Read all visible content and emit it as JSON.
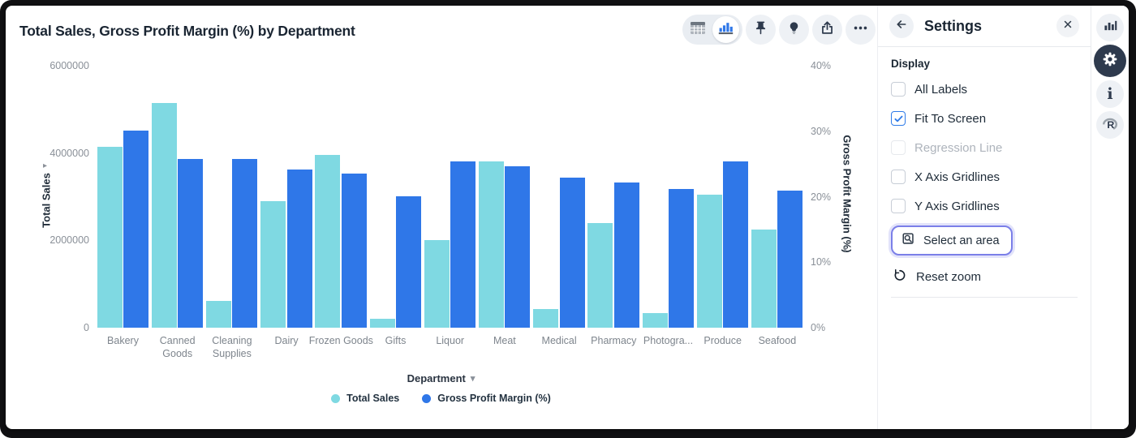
{
  "colors": {
    "total_sales": "#7FD9E2",
    "gross_profit_margin": "#2F77E8",
    "focus_ring": "#7B7FE8",
    "checkbox_checked": "#2F7BE8",
    "icon_dark": "#2E3A4D"
  },
  "header": {
    "title": "Total Sales, Gross Profit Margin (%) by Department"
  },
  "toolbar": {
    "items": [
      {
        "icon": "table-view-icon",
        "active": false
      },
      {
        "icon": "chart-view-icon",
        "active": true
      },
      {
        "icon": "pin-icon"
      },
      {
        "icon": "lightbulb-icon"
      },
      {
        "icon": "export-icon"
      },
      {
        "icon": "more-ellipsis-icon"
      }
    ]
  },
  "chart_data": {
    "type": "bar",
    "title": "Total Sales, Gross Profit Margin (%) by Department",
    "categories": [
      "Bakery",
      "Canned Goods",
      "Cleaning Supplies",
      "Dairy",
      "Frozen Goods",
      "Gifts",
      "Liquor",
      "Meat",
      "Medical",
      "Pharmacy",
      "Photogra...",
      "Produce",
      "Seafood"
    ],
    "series": [
      {
        "name": "Total Sales",
        "axis": "left",
        "color": "#7FD9E2",
        "values": [
          4150000,
          5150000,
          620000,
          2900000,
          3950000,
          200000,
          2000000,
          3800000,
          430000,
          2400000,
          330000,
          3050000,
          2250000
        ]
      },
      {
        "name": "Gross Profit Margin (%)",
        "axis": "right",
        "color": "#2F77E8",
        "values": [
          30.1,
          25.8,
          25.7,
          24.2,
          23.5,
          20.1,
          25.4,
          24.7,
          22.9,
          22.2,
          21.2,
          25.4,
          20.9
        ]
      }
    ],
    "left_axis": {
      "title": "Total Sales",
      "min": 0,
      "max": 6000000,
      "ticks": [
        0,
        2000000,
        4000000,
        6000000
      ]
    },
    "right_axis": {
      "title": "Gross Profit Margin (%)",
      "min": 0,
      "max": 40,
      "ticks": [
        0,
        10,
        20,
        30,
        40
      ],
      "suffix": "%"
    },
    "x_axis": {
      "title": "Department"
    },
    "legend_position": "bottom",
    "gridlines": false
  },
  "settings": {
    "title": "Settings",
    "section_label": "Display",
    "options": [
      {
        "label": "All Labels",
        "checked": false,
        "disabled": false
      },
      {
        "label": "Fit To Screen",
        "checked": true,
        "disabled": false
      },
      {
        "label": "Regression Line",
        "checked": false,
        "disabled": true
      },
      {
        "label": "X Axis Gridlines",
        "checked": false,
        "disabled": false
      },
      {
        "label": "Y Axis Gridlines",
        "checked": false,
        "disabled": false
      }
    ],
    "select_area_label": "Select an area",
    "reset_zoom_label": "Reset zoom"
  },
  "right_rail": {
    "items": [
      {
        "icon": "bar-chart-icon",
        "active": false
      },
      {
        "icon": "gear-icon",
        "active": true
      },
      {
        "icon": "info-icon",
        "active": false
      },
      {
        "icon": "r-language-icon",
        "active": false
      }
    ]
  }
}
